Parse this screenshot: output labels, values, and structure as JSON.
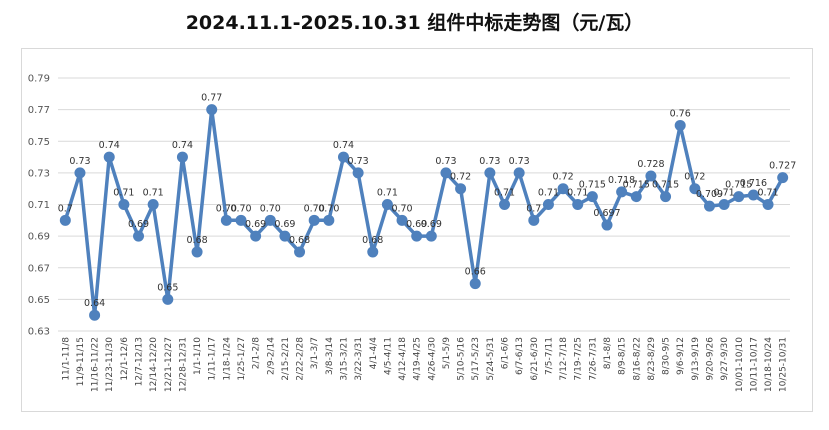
{
  "chart_data": {
    "type": "line",
    "title": "2024.11.1-2025.10.31 组件中标走势图（元/瓦）",
    "xlabel": "",
    "ylabel": "",
    "ylim": [
      0.63,
      0.79
    ],
    "yticks": [
      "0.63",
      "0.65",
      "0.67",
      "0.69",
      "0.71",
      "0.73",
      "0.75",
      "0.77",
      "0.79"
    ],
    "grid": true,
    "legend": "none",
    "color": "#4f81bd",
    "categories": [
      "11/1-11/8",
      "11/9-11/15",
      "11/16-11/22",
      "11/23-11/30",
      "12/1-12/6",
      "12/7-12/13",
      "12/14-12/20",
      "12/21-12/27",
      "12/28-12/31",
      "1/1-1/10",
      "1/11-1/17",
      "1/18-1/24",
      "1/25-1/27",
      "2/1-2/8",
      "2/9-2/14",
      "2/15-2/21",
      "2/22-2/28",
      "3/1-3/7",
      "3/8-3/14",
      "3/15-3/21",
      "3/22-3/31",
      "4/1-4/4",
      "4/5-4/11",
      "4/12-4/18",
      "4/19-4/25",
      "4/26-4/30",
      "5/1-5/9",
      "5/10-5/16",
      "5/17-5/23",
      "5/24-5/31",
      "6/1-6/6",
      "6/7-6/13",
      "6/21-6/30",
      "7/5-7/11",
      "7/12-7/18",
      "7/19-7/25",
      "7/26-7/31",
      "8/1-8/8",
      "8/9-8/15",
      "8/16-8/22",
      "8/23-8/29",
      "8/30-9/5",
      "9/6-9/12",
      "9/13-9/19",
      "9/20-9/26",
      "9/27-9/30",
      "10/01-10/10",
      "10/11-10/17",
      "10/18-10/24",
      "10/25-10/31"
    ],
    "values": [
      0.7,
      0.73,
      0.64,
      0.74,
      0.71,
      0.69,
      0.71,
      0.65,
      0.74,
      0.68,
      0.77,
      0.7,
      0.7,
      0.69,
      0.7,
      0.69,
      0.68,
      0.7,
      0.7,
      0.74,
      0.73,
      0.68,
      0.71,
      0.7,
      0.69,
      0.69,
      0.73,
      0.72,
      0.66,
      0.73,
      0.71,
      0.73,
      0.7,
      0.71,
      0.72,
      0.71,
      0.715,
      0.697,
      0.718,
      0.715,
      0.728,
      0.715,
      0.76,
      0.72,
      0.709,
      0.71,
      0.715,
      0.716,
      0.71,
      0.727
    ],
    "data_labels": [
      "0.7",
      "0.73",
      "0.64",
      "0.74",
      "0.71",
      "0.69",
      "0.71",
      "0.65",
      "0.74",
      "0.68",
      "0.77",
      "0.70",
      "0.70",
      "0.69",
      "0.70",
      "0.69",
      "0.68",
      "0.70",
      "0.70",
      "0.74",
      "0.73",
      "0.68",
      "0.71",
      "0.70",
      "0.69",
      "0.69",
      "0.73",
      "0.72",
      "0.66",
      "0.73",
      "0.71",
      "0.73",
      "0.7",
      "0.71",
      "0.72",
      "0.71",
      "0.715",
      "0.697",
      "0.718",
      "0.715",
      "0.728",
      "0.715",
      "0.76",
      "0.72",
      "0.709",
      "0.71",
      "0.715",
      "0.716",
      "0.71",
      "0.727"
    ]
  }
}
